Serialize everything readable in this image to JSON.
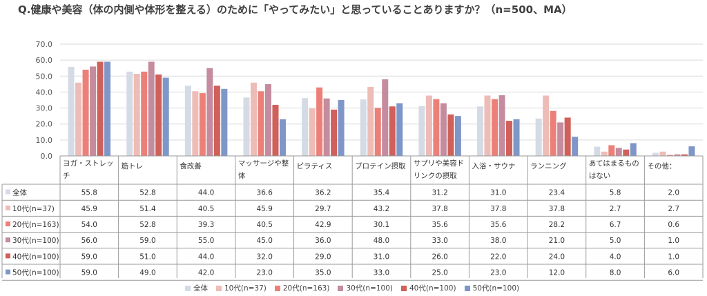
{
  "title": "Q.健康や美容（体の内側や体形を整える）のために「やってみたい」と思っていることありますか？（n=500、MA）",
  "chart_data": {
    "type": "bar",
    "ylim": [
      0,
      70
    ],
    "yticks": [
      "0.0",
      "10.0",
      "20.0",
      "30.0",
      "40.0",
      "50.0",
      "60.0",
      "70.0"
    ],
    "grid": true,
    "legend_position": "bottom",
    "categories": [
      [
        "ヨガ・ストレッ",
        "チ"
      ],
      [
        "筋トレ"
      ],
      [
        "食改善"
      ],
      [
        "マッサージや整",
        "体"
      ],
      [
        "ピラティス"
      ],
      [
        "プロテイン摂取"
      ],
      [
        "サプリや美容ド",
        "リンクの摂取"
      ],
      [
        "入浴・サウナ"
      ],
      [
        "ランニング"
      ],
      [
        "あてはまるもの",
        "はない"
      ],
      [
        "その他："
      ]
    ],
    "series": [
      {
        "name": "全体",
        "color": "#d5dbe5",
        "values": [
          55.8,
          52.8,
          44.0,
          36.6,
          36.2,
          35.4,
          31.2,
          31.0,
          23.4,
          5.8,
          2.0
        ]
      },
      {
        "name": "10代(n=37)",
        "color": "#eebcb6",
        "values": [
          45.9,
          51.4,
          40.5,
          45.9,
          29.7,
          43.2,
          37.8,
          37.8,
          37.8,
          2.7,
          2.7
        ]
      },
      {
        "name": "20代(n=163)",
        "color": "#ec8078",
        "values": [
          54.0,
          52.8,
          39.3,
          40.5,
          42.9,
          30.1,
          35.6,
          35.6,
          28.2,
          6.7,
          0.6
        ]
      },
      {
        "name": "30代(n=100)",
        "color": "#c48c9e",
        "values": [
          56.0,
          59.0,
          55.0,
          45.0,
          36.0,
          48.0,
          33.0,
          38.0,
          21.0,
          5.0,
          1.0
        ]
      },
      {
        "name": "40代(n=100)",
        "color": "#cf605a",
        "values": [
          59.0,
          51.0,
          44.0,
          32.0,
          29.0,
          31.0,
          26.0,
          22.0,
          24.0,
          4.0,
          1.0
        ]
      },
      {
        "name": "50代(n=100)",
        "color": "#7e97c8",
        "values": [
          59.0,
          49.0,
          42.0,
          23.0,
          35.0,
          33.0,
          25.0,
          23.0,
          12.0,
          8.0,
          6.0
        ]
      }
    ]
  }
}
